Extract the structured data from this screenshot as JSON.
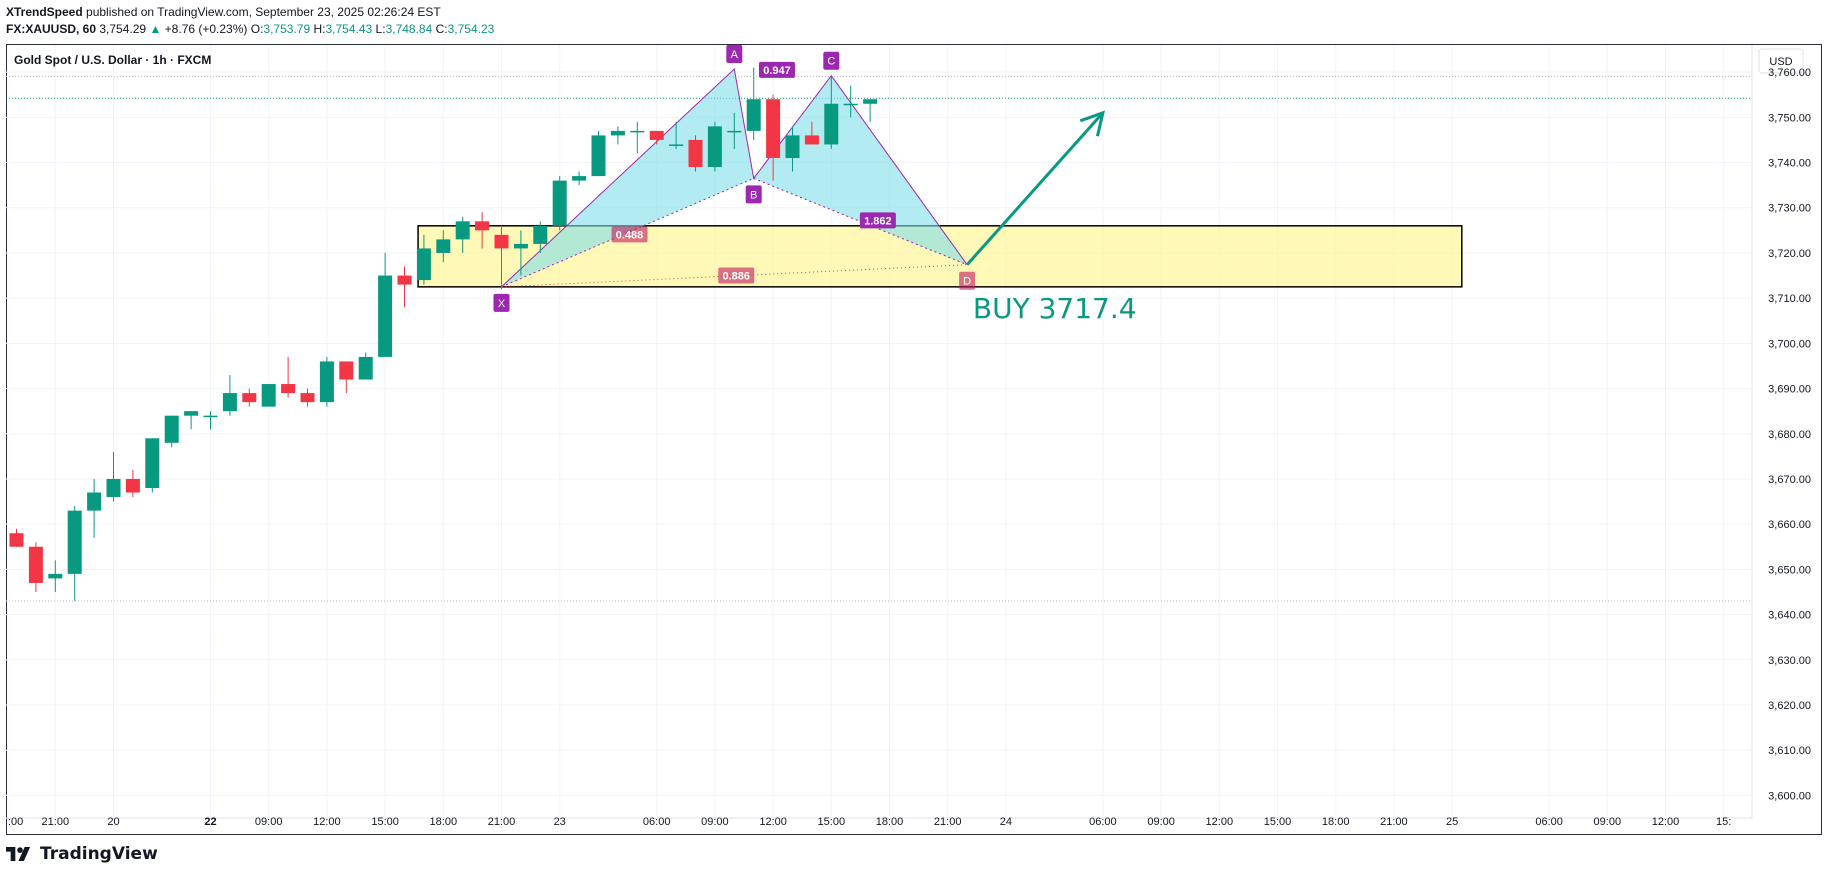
{
  "header": {
    "author": "XTrendSpeed",
    "published": "published on TradingView.com, September 23, 2025 02:26:24 EST",
    "symbol": "FX:XAUUSD, 60",
    "price": "3,754.29",
    "change_arrow": "▲",
    "change": "+8.76 (+0.23%)",
    "o_label": "O:",
    "o": "3,753.79",
    "h_label": "H:",
    "h": "3,754.43",
    "l_label": "L:",
    "l": "3,748.84",
    "c_label": "C:",
    "c": "3,754.23"
  },
  "chart_title": "Gold Spot / U.S. Dollar · 1h · FXCM",
  "currency": "USD",
  "footer": {
    "logo_text": "TradingView"
  },
  "colors": {
    "up": "#089981",
    "down": "#f23645",
    "pattern": "#9c27b0",
    "zone_fill": "#fff59d",
    "arrow": "#089981"
  },
  "chart_data": {
    "type": "candlestick",
    "title": "Gold Spot / U.S. Dollar · 1h · FXCM",
    "ylim": [
      3595,
      3766
    ],
    "y_ticks": [
      3600,
      3610,
      3620,
      3630,
      3640,
      3650,
      3660,
      3670,
      3680,
      3690,
      3700,
      3710,
      3720,
      3730,
      3740,
      3750,
      3760
    ],
    "y_tick_labels": [
      "3,600.00",
      "3,610.00",
      "3,620.00",
      "3,630.00",
      "3,640.00",
      "3,650.00",
      "3,660.00",
      "3,670.00",
      "3,680.00",
      "3,690.00",
      "3,700.00",
      "3,710.00",
      "3,720.00",
      "3,730.00",
      "3,740.00",
      "3,750.00",
      "3,760.00"
    ],
    "x_ticks": [
      {
        "i": -1,
        "label": ":00"
      },
      {
        "i": 2,
        "label": "21:00"
      },
      {
        "i": 5,
        "label": "20"
      },
      {
        "i": 10,
        "label": "22",
        "bold": true
      },
      {
        "i": 13,
        "label": "09:00"
      },
      {
        "i": 16,
        "label": "12:00"
      },
      {
        "i": 19,
        "label": "15:00"
      },
      {
        "i": 22,
        "label": "18:00"
      },
      {
        "i": 25,
        "label": "21:00"
      },
      {
        "i": 28,
        "label": "23"
      },
      {
        "i": 33,
        "label": "06:00"
      },
      {
        "i": 36,
        "label": "09:00"
      },
      {
        "i": 39,
        "label": "12:00"
      },
      {
        "i": 42,
        "label": "15:00"
      },
      {
        "i": 45,
        "label": "18:00"
      },
      {
        "i": 48,
        "label": "21:00"
      },
      {
        "i": 51,
        "label": "24"
      },
      {
        "i": 56,
        "label": "06:00"
      },
      {
        "i": 59,
        "label": "09:00"
      },
      {
        "i": 62,
        "label": "12:00"
      },
      {
        "i": 65,
        "label": "15:00"
      },
      {
        "i": 68,
        "label": "18:00"
      },
      {
        "i": 71,
        "label": "21:00"
      },
      {
        "i": 74,
        "label": "25"
      },
      {
        "i": 79,
        "label": "06:00"
      },
      {
        "i": 82,
        "label": "09:00"
      },
      {
        "i": 85,
        "label": "12:00"
      },
      {
        "i": 88,
        "label": "15:"
      }
    ],
    "candles": [
      {
        "o": 3658,
        "h": 3659,
        "l": 3655,
        "c": 3655
      },
      {
        "o": 3655,
        "h": 3656,
        "l": 3645,
        "c": 3647
      },
      {
        "o": 3648,
        "h": 3652,
        "l": 3645,
        "c": 3649
      },
      {
        "o": 3649,
        "h": 3664,
        "l": 3643,
        "c": 3663
      },
      {
        "o": 3663,
        "h": 3670,
        "l": 3657,
        "c": 3667
      },
      {
        "o": 3666,
        "h": 3676,
        "l": 3665,
        "c": 3670
      },
      {
        "o": 3670,
        "h": 3672,
        "l": 3666,
        "c": 3667
      },
      {
        "o": 3668,
        "h": 3679,
        "l": 3667,
        "c": 3679
      },
      {
        "o": 3678,
        "h": 3684,
        "l": 3677,
        "c": 3684
      },
      {
        "o": 3684,
        "h": 3685,
        "l": 3681,
        "c": 3685
      },
      {
        "o": 3684,
        "h": 3685,
        "l": 3681,
        "c": 3684
      },
      {
        "o": 3685,
        "h": 3693,
        "l": 3684,
        "c": 3689
      },
      {
        "o": 3689,
        "h": 3690,
        "l": 3686,
        "c": 3687
      },
      {
        "o": 3686,
        "h": 3691,
        "l": 3686,
        "c": 3691
      },
      {
        "o": 3691,
        "h": 3697,
        "l": 3688,
        "c": 3689
      },
      {
        "o": 3689,
        "h": 3690,
        "l": 3686,
        "c": 3687
      },
      {
        "o": 3687,
        "h": 3697,
        "l": 3686,
        "c": 3696
      },
      {
        "o": 3696,
        "h": 3696,
        "l": 3689,
        "c": 3692
      },
      {
        "o": 3692,
        "h": 3698,
        "l": 3692,
        "c": 3697
      },
      {
        "o": 3697,
        "h": 3720,
        "l": 3697,
        "c": 3715
      },
      {
        "o": 3715,
        "h": 3717,
        "l": 3708,
        "c": 3713
      },
      {
        "o": 3714,
        "h": 3724,
        "l": 3713,
        "c": 3721
      },
      {
        "o": 3720,
        "h": 3725,
        "l": 3718,
        "c": 3723
      },
      {
        "o": 3723,
        "h": 3728,
        "l": 3720,
        "c": 3727
      },
      {
        "o": 3727,
        "h": 3729,
        "l": 3721,
        "c": 3725
      },
      {
        "o": 3724,
        "h": 3726,
        "l": 3712,
        "c": 3721
      },
      {
        "o": 3721,
        "h": 3725,
        "l": 3715,
        "c": 3722
      },
      {
        "o": 3722,
        "h": 3727,
        "l": 3720,
        "c": 3726
      },
      {
        "o": 3726,
        "h": 3737,
        "l": 3725,
        "c": 3736
      },
      {
        "o": 3736,
        "h": 3738,
        "l": 3735,
        "c": 3737
      },
      {
        "o": 3737,
        "h": 3747,
        "l": 3737,
        "c": 3746
      },
      {
        "o": 3746,
        "h": 3748,
        "l": 3744,
        "c": 3747
      },
      {
        "o": 3747,
        "h": 3749,
        "l": 3742,
        "c": 3747
      },
      {
        "o": 3747,
        "h": 3747,
        "l": 3744,
        "c": 3745
      },
      {
        "o": 3744,
        "h": 3749,
        "l": 3743,
        "c": 3744
      },
      {
        "o": 3745,
        "h": 3746,
        "l": 3738,
        "c": 3739
      },
      {
        "o": 3739,
        "h": 3749,
        "l": 3738,
        "c": 3748
      },
      {
        "o": 3747,
        "h": 3751,
        "l": 3743,
        "c": 3747
      },
      {
        "o": 3747,
        "h": 3761,
        "l": 3745,
        "c": 3754
      },
      {
        "o": 3754,
        "h": 3755,
        "l": 3736,
        "c": 3741
      },
      {
        "o": 3741,
        "h": 3748,
        "l": 3738,
        "c": 3746
      },
      {
        "o": 3746,
        "h": 3749,
        "l": 3744,
        "c": 3744
      },
      {
        "o": 3744,
        "h": 3759,
        "l": 3743,
        "c": 3753
      },
      {
        "o": 3753,
        "h": 3757,
        "l": 3750,
        "c": 3753
      },
      {
        "o": 3753,
        "h": 3754,
        "l": 3749,
        "c": 3754
      }
    ],
    "horizontal_lines": [
      {
        "y": 3759,
        "color": "#b2b5be"
      },
      {
        "y": 3754.23,
        "color": "#089981"
      },
      {
        "y": 3643,
        "color": "#b2b5be"
      }
    ],
    "zone": {
      "x0": 20.7,
      "x1": 74.5,
      "y0": 3712.5,
      "y1": 3726
    },
    "harmonic": {
      "points": [
        {
          "name": "X",
          "i": 25,
          "y": 3712.5
        },
        {
          "name": "A",
          "i": 37,
          "y": 3760.7
        },
        {
          "name": "B",
          "i": 38,
          "y": 3736.5
        },
        {
          "name": "C",
          "i": 42,
          "y": 3759.2
        },
        {
          "name": "D",
          "i": 49,
          "y": 3717.4
        }
      ],
      "ratios": [
        {
          "value": "0.947",
          "i": 39.2,
          "y": 3760.5
        },
        {
          "value": "0.488",
          "i": 31.6,
          "y": 3724.1
        },
        {
          "value": "1.862",
          "i": 44.4,
          "y": 3727.2
        },
        {
          "value": "0.886",
          "i": 37.1,
          "y": 3715.0
        }
      ]
    },
    "arrow": {
      "from_i": 49,
      "from_y": 3717.4,
      "to_i": 56,
      "to_y": 3751
    },
    "annotation": {
      "text": "BUY  3717.4",
      "i": 49.3,
      "y": 3710
    }
  }
}
